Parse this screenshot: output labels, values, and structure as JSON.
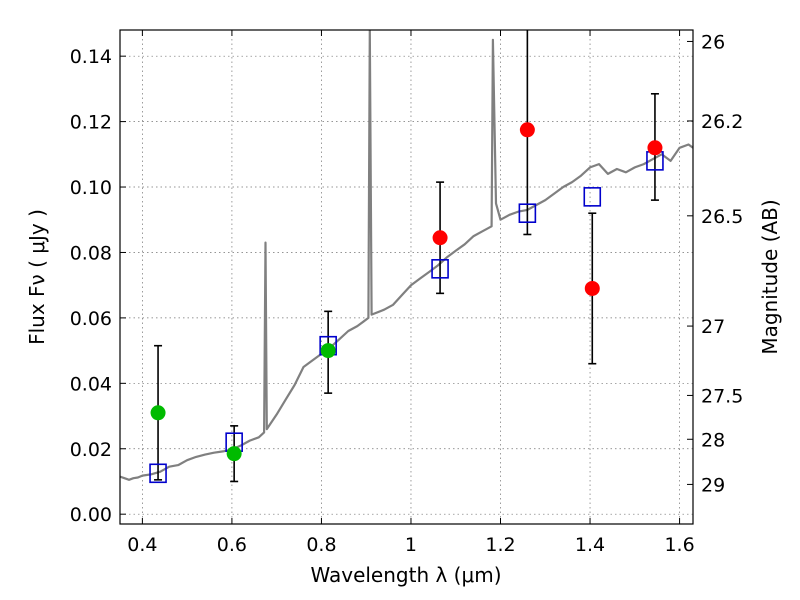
{
  "chart_data": {
    "type": "scatter",
    "xlabel": "Wavelength  λ (μm)",
    "ylabel": "Flux  Fν  ( μJy )",
    "ylabel_right": "Magnitude (AB)",
    "xlim": [
      0.35,
      1.63
    ],
    "ylim": [
      -0.003,
      0.148
    ],
    "grid": true,
    "x_ticks": [
      {
        "value": 0.4,
        "label": "0.4"
      },
      {
        "value": 0.6,
        "label": "0.6"
      },
      {
        "value": 0.8,
        "label": "0.8"
      },
      {
        "value": 1.0,
        "label": "1"
      },
      {
        "value": 1.2,
        "label": "1.2"
      },
      {
        "value": 1.4,
        "label": "1.4"
      },
      {
        "value": 1.6,
        "label": "1.6"
      }
    ],
    "y_ticks": [
      {
        "value": 0.0,
        "label": "0.00"
      },
      {
        "value": 0.02,
        "label": "0.02"
      },
      {
        "value": 0.04,
        "label": "0.04"
      },
      {
        "value": 0.06,
        "label": "0.06"
      },
      {
        "value": 0.08,
        "label": "0.08"
      },
      {
        "value": 0.1,
        "label": "0.10"
      },
      {
        "value": 0.12,
        "label": "0.12"
      },
      {
        "value": 0.14,
        "label": "0.14"
      }
    ],
    "right_ticks": [
      {
        "flux": 0.1445,
        "label": "26"
      },
      {
        "flux": 0.1202,
        "label": "26.2"
      },
      {
        "flux": 0.0912,
        "label": "26.5"
      },
      {
        "flux": 0.0575,
        "label": "27"
      },
      {
        "flux": 0.0363,
        "label": "27.5"
      },
      {
        "flux": 0.0229,
        "label": "28"
      },
      {
        "flux": 0.0091,
        "label": "29"
      }
    ],
    "colors": {
      "sed": "#808080",
      "model": "#0000cc",
      "green": "#00bb00",
      "red": "#ff0000",
      "errorbar": "#000000"
    },
    "series": [
      {
        "kind": "line",
        "points": [
          [
            0.35,
            0.0115
          ],
          [
            0.36,
            0.011
          ],
          [
            0.37,
            0.0105
          ],
          [
            0.38,
            0.011
          ],
          [
            0.39,
            0.0112
          ],
          [
            0.4,
            0.0118
          ],
          [
            0.42,
            0.0122
          ],
          [
            0.44,
            0.013
          ],
          [
            0.46,
            0.0145
          ],
          [
            0.48,
            0.015
          ],
          [
            0.5,
            0.0165
          ],
          [
            0.52,
            0.0175
          ],
          [
            0.54,
            0.0182
          ],
          [
            0.56,
            0.0188
          ],
          [
            0.58,
            0.0192
          ],
          [
            0.6,
            0.0198
          ],
          [
            0.62,
            0.021
          ],
          [
            0.64,
            0.0225
          ],
          [
            0.66,
            0.0235
          ],
          [
            0.672,
            0.025
          ],
          [
            0.675,
            0.083
          ],
          [
            0.678,
            0.026
          ],
          [
            0.7,
            0.0305
          ],
          [
            0.72,
            0.035
          ],
          [
            0.74,
            0.0395
          ],
          [
            0.76,
            0.045
          ],
          [
            0.78,
            0.047
          ],
          [
            0.8,
            0.049
          ],
          [
            0.82,
            0.051
          ],
          [
            0.84,
            0.0535
          ],
          [
            0.86,
            0.056
          ],
          [
            0.88,
            0.0575
          ],
          [
            0.895,
            0.059
          ],
          [
            0.905,
            0.06
          ],
          [
            0.908,
            0.148
          ],
          [
            0.912,
            0.061
          ],
          [
            0.94,
            0.0625
          ],
          [
            0.96,
            0.064
          ],
          [
            0.98,
            0.067
          ],
          [
            1.0,
            0.07
          ],
          [
            1.02,
            0.072
          ],
          [
            1.04,
            0.074
          ],
          [
            1.06,
            0.076
          ],
          [
            1.08,
            0.0785
          ],
          [
            1.1,
            0.0805
          ],
          [
            1.12,
            0.0825
          ],
          [
            1.14,
            0.085
          ],
          [
            1.16,
            0.0865
          ],
          [
            1.18,
            0.088
          ],
          [
            1.183,
            0.145
          ],
          [
            1.19,
            0.095
          ],
          [
            1.2,
            0.09
          ],
          [
            1.22,
            0.0915
          ],
          [
            1.24,
            0.0925
          ],
          [
            1.26,
            0.093
          ],
          [
            1.28,
            0.0945
          ],
          [
            1.3,
            0.096
          ],
          [
            1.32,
            0.098
          ],
          [
            1.34,
            0.1
          ],
          [
            1.36,
            0.1015
          ],
          [
            1.38,
            0.1035
          ],
          [
            1.4,
            0.106
          ],
          [
            1.42,
            0.107
          ],
          [
            1.44,
            0.104
          ],
          [
            1.46,
            0.1055
          ],
          [
            1.48,
            0.1045
          ],
          [
            1.5,
            0.106
          ],
          [
            1.52,
            0.107
          ],
          [
            1.54,
            0.1085
          ],
          [
            1.56,
            0.11
          ],
          [
            1.58,
            0.108
          ],
          [
            1.6,
            0.112
          ],
          [
            1.62,
            0.113
          ],
          [
            1.63,
            0.112
          ]
        ]
      },
      {
        "kind": "model-squares",
        "points": [
          [
            0.435,
            0.0125
          ],
          [
            0.605,
            0.022
          ],
          [
            0.815,
            0.0515
          ],
          [
            1.065,
            0.075
          ],
          [
            1.26,
            0.092
          ],
          [
            1.405,
            0.097
          ],
          [
            1.545,
            0.108
          ]
        ]
      },
      {
        "kind": "observed-points",
        "points": [
          {
            "x": 0.435,
            "y": 0.031,
            "lo": 0.0105,
            "hi": 0.0515,
            "color": "green"
          },
          {
            "x": 0.605,
            "y": 0.0185,
            "lo": 0.01,
            "hi": 0.027,
            "color": "green"
          },
          {
            "x": 0.815,
            "y": 0.05,
            "lo": 0.037,
            "hi": 0.062,
            "color": "green"
          },
          {
            "x": 1.065,
            "y": 0.0845,
            "lo": 0.0675,
            "hi": 0.1015,
            "color": "red"
          },
          {
            "x": 1.26,
            "y": 0.1175,
            "lo": 0.0855,
            "hi": 0.1485,
            "color": "red"
          },
          {
            "x": 1.405,
            "y": 0.069,
            "lo": 0.046,
            "hi": 0.092,
            "color": "red"
          },
          {
            "x": 1.545,
            "y": 0.112,
            "lo": 0.096,
            "hi": 0.1285,
            "color": "red"
          }
        ]
      }
    ]
  }
}
